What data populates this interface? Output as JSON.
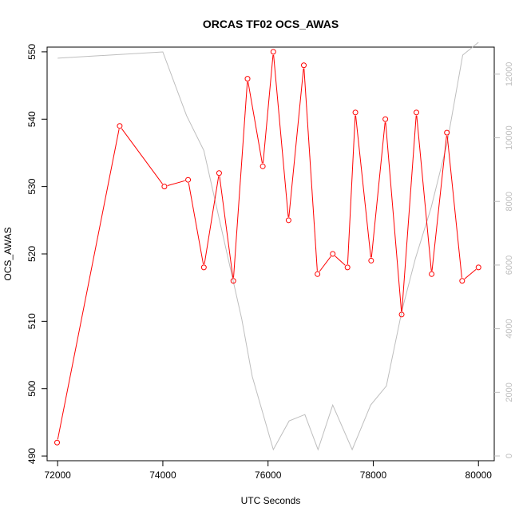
{
  "chart_data": {
    "type": "line",
    "title": "ORCAS TF02 OCS_AWAS",
    "xlabel": "UTC Seconds",
    "ylabel": "OCS_AWAS",
    "xlim": [
      71800,
      80300
    ],
    "ylim": [
      489.3,
      550.7
    ],
    "y2lim": [
      -150,
      12850
    ],
    "x_ticks": [
      72000,
      74000,
      76000,
      78000,
      80000
    ],
    "y_ticks": [
      490,
      500,
      510,
      520,
      530,
      540,
      550
    ],
    "y2_ticks": [
      0,
      2000,
      4000,
      6000,
      8000,
      10000,
      12000
    ],
    "colors": {
      "primary": "#ff0000",
      "secondary": "#bebebe",
      "axis": "#000000"
    },
    "grid": false,
    "series": [
      {
        "axis": "left",
        "style": "line-with-points",
        "x": [
          71990,
          73180,
          74030,
          74480,
          74780,
          75070,
          75340,
          75610,
          75900,
          76100,
          76390,
          76680,
          76940,
          77230,
          77510,
          77660,
          77960,
          78230,
          78540,
          78820,
          79110,
          79400,
          79690,
          80000
        ],
        "y": [
          492,
          539,
          530,
          531,
          518,
          532,
          516,
          546,
          533,
          550,
          525,
          548,
          517,
          520,
          518,
          541,
          519,
          540,
          511,
          541,
          517,
          538,
          516,
          518
        ]
      },
      {
        "axis": "right",
        "style": "line",
        "x": [
          72000,
          74000,
          74450,
          74780,
          75500,
          75700,
          76100,
          76400,
          76700,
          76950,
          77230,
          77600,
          77950,
          78250,
          78550,
          78800,
          79100,
          79400,
          79700,
          80000
        ],
        "y": [
          12500,
          12700,
          10700,
          9600,
          4300,
          2500,
          200,
          1100,
          1300,
          200,
          1600,
          200,
          1600,
          2200,
          4600,
          6200,
          7800,
          9800,
          12600,
          13000
        ]
      }
    ]
  }
}
